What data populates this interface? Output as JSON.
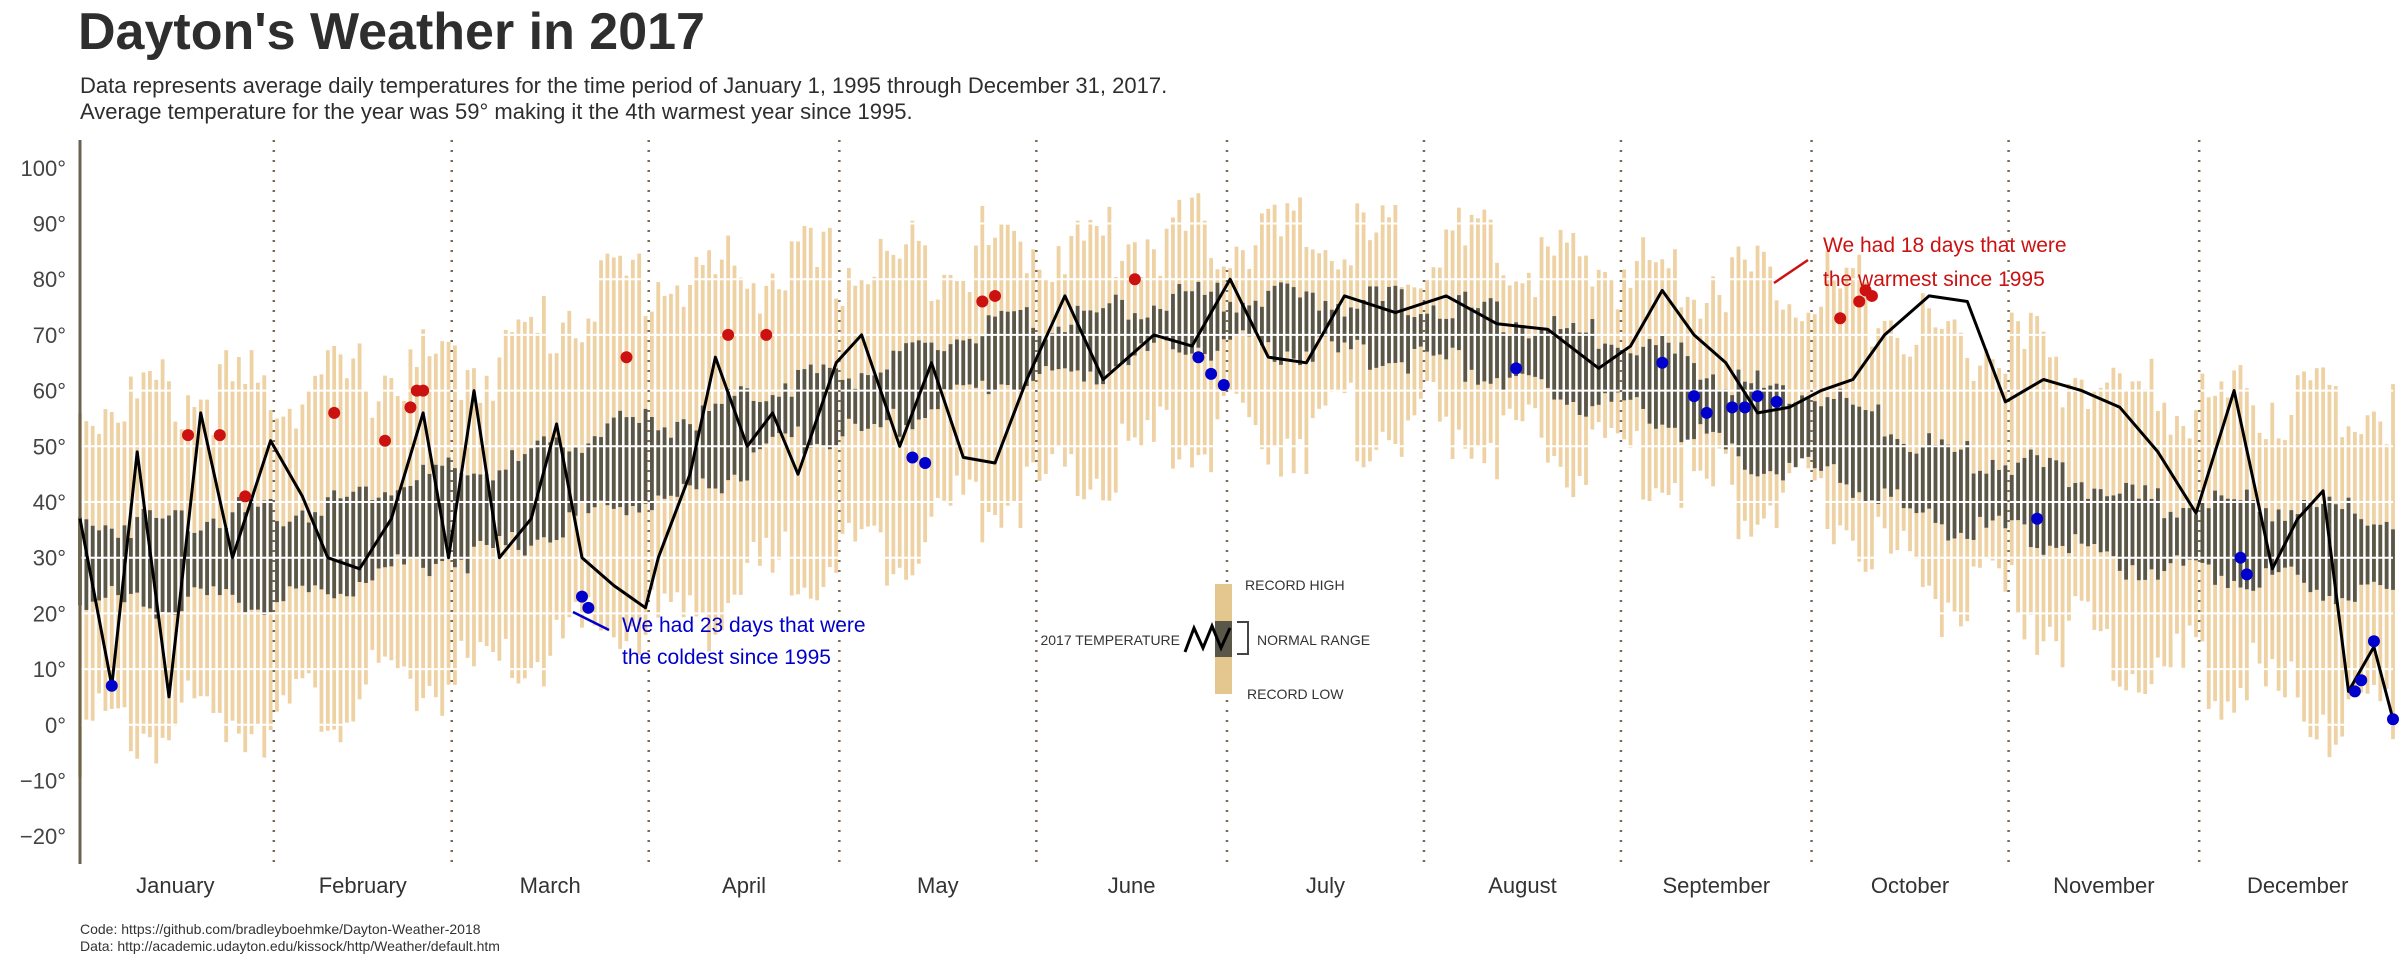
{
  "header": {
    "title": "Dayton's Weather in 2017",
    "subtitle_line1": "Data represents average daily temperatures for the time period of January 1, 1995 through December 31, 2017.",
    "subtitle_line2": "Average temperature for the year was 59° making it the 4th warmest year since 1995."
  },
  "footer": {
    "code": "Code: https://github.com/bradleyboehmke/Dayton-Weather-2018",
    "data": "Data: http://academic.udayton.edu/kissock/http/Weather/default.htm"
  },
  "colors": {
    "record_band": "#eed2a4",
    "normal_band": "#5a5648",
    "temp_line": "#000000",
    "cold_point": "#0000cc",
    "warm_point": "#cc1111",
    "month_divider": "#7a6a50",
    "grid": "#ffffff"
  },
  "chart_data": {
    "type": "line",
    "ylim": [
      -25,
      105
    ],
    "y_ticks": [
      -20,
      -10,
      0,
      10,
      20,
      30,
      40,
      50,
      60,
      70,
      80,
      90,
      100
    ],
    "y_tick_labels": [
      "−20°",
      "−10°",
      "0°",
      "10°",
      "20°",
      "30°",
      "40°",
      "50°",
      "60°",
      "70°",
      "80°",
      "90°",
      "100°"
    ],
    "months": [
      "January",
      "February",
      "March",
      "April",
      "May",
      "June",
      "July",
      "August",
      "September",
      "October",
      "November",
      "December"
    ],
    "month_lengths": [
      31,
      28,
      31,
      30,
      31,
      30,
      31,
      31,
      30,
      31,
      30,
      31
    ],
    "series_2017_days": [
      1,
      6,
      10,
      15,
      20,
      25,
      31,
      36,
      40,
      45,
      50,
      55,
      59,
      63,
      67,
      72,
      76,
      80,
      85,
      90,
      92,
      97,
      101,
      106,
      110,
      114,
      120,
      124,
      130,
      135,
      140,
      145,
      150,
      156,
      162,
      170,
      176,
      182,
      188,
      194,
      200,
      208,
      216,
      224,
      232,
      240,
      245,
      250,
      255,
      260,
      265,
      270,
      275,
      280,
      285,
      292,
      298,
      304,
      310,
      316,
      322,
      328,
      334,
      340,
      346,
      350,
      354,
      358,
      362,
      365
    ],
    "series_2017_temp": [
      37,
      7,
      49,
      5,
      56,
      30,
      51,
      41,
      30,
      28,
      37,
      56,
      30,
      60,
      30,
      37,
      54,
      30,
      25,
      21,
      30,
      45,
      66,
      50,
      56,
      45,
      65,
      70,
      50,
      65,
      48,
      47,
      62,
      77,
      62,
      70,
      68,
      80,
      66,
      65,
      77,
      74,
      77,
      72,
      71,
      64,
      68,
      78,
      70,
      65,
      56,
      57,
      60,
      62,
      70,
      77,
      76,
      58,
      62,
      60,
      57,
      49,
      38,
      60,
      28,
      37,
      42,
      6,
      14,
      1
    ],
    "record_high_ctrl_days": [
      1,
      30,
      60,
      90,
      120,
      150,
      180,
      210,
      240,
      270,
      300,
      330,
      365
    ],
    "record_high_ctrl": [
      58,
      60,
      64,
      80,
      82,
      86,
      88,
      86,
      82,
      80,
      68,
      58,
      58
    ],
    "record_low_ctrl_days": [
      1,
      30,
      60,
      90,
      120,
      150,
      180,
      210,
      240,
      270,
      300,
      330,
      365
    ],
    "record_low_ctrl": [
      -2,
      2,
      8,
      18,
      30,
      42,
      52,
      54,
      48,
      40,
      22,
      10,
      0
    ],
    "normal_high_ctrl_days": [
      1,
      30,
      60,
      90,
      120,
      150,
      180,
      210,
      240,
      270,
      300,
      330,
      365
    ],
    "normal_high_ctrl": [
      36,
      38,
      45,
      54,
      63,
      72,
      77,
      76,
      70,
      60,
      48,
      40,
      38
    ],
    "normal_low_ctrl_days": [
      1,
      30,
      60,
      90,
      120,
      150,
      180,
      210,
      240,
      270,
      300,
      330,
      365
    ],
    "normal_low_ctrl": [
      22,
      22,
      30,
      40,
      52,
      62,
      68,
      66,
      58,
      46,
      35,
      28,
      24
    ],
    "cold_records": [
      {
        "day": 6,
        "temp": 7
      },
      {
        "day": 80,
        "temp": 23
      },
      {
        "day": 81,
        "temp": 21
      },
      {
        "day": 132,
        "temp": 48
      },
      {
        "day": 134,
        "temp": 47
      },
      {
        "day": 177,
        "temp": 66
      },
      {
        "day": 179,
        "temp": 63
      },
      {
        "day": 181,
        "temp": 61
      },
      {
        "day": 227,
        "temp": 64
      },
      {
        "day": 250,
        "temp": 65
      },
      {
        "day": 255,
        "temp": 59
      },
      {
        "day": 257,
        "temp": 56
      },
      {
        "day": 261,
        "temp": 57
      },
      {
        "day": 263,
        "temp": 57
      },
      {
        "day": 265,
        "temp": 59
      },
      {
        "day": 268,
        "temp": 58
      },
      {
        "day": 309,
        "temp": 37
      },
      {
        "day": 341,
        "temp": 30
      },
      {
        "day": 342,
        "temp": 27
      },
      {
        "day": 359,
        "temp": 6
      },
      {
        "day": 360,
        "temp": 8
      },
      {
        "day": 362,
        "temp": 15
      },
      {
        "day": 365,
        "temp": 1
      }
    ],
    "warm_records": [
      {
        "day": 18,
        "temp": 52
      },
      {
        "day": 23,
        "temp": 52
      },
      {
        "day": 27,
        "temp": 41
      },
      {
        "day": 41,
        "temp": 56
      },
      {
        "day": 49,
        "temp": 51
      },
      {
        "day": 53,
        "temp": 57
      },
      {
        "day": 54,
        "temp": 60
      },
      {
        "day": 55,
        "temp": 60
      },
      {
        "day": 87,
        "temp": 66
      },
      {
        "day": 103,
        "temp": 70
      },
      {
        "day": 109,
        "temp": 70
      },
      {
        "day": 143,
        "temp": 76
      },
      {
        "day": 145,
        "temp": 77
      },
      {
        "day": 167,
        "temp": 80
      },
      {
        "day": 278,
        "temp": 73
      },
      {
        "day": 281,
        "temp": 76
      },
      {
        "day": 282,
        "temp": 78
      },
      {
        "day": 283,
        "temp": 77
      }
    ],
    "annotations": {
      "cold_line1": "We had 23 days that were",
      "cold_line2": "the coldest since 1995",
      "warm_line1": "We had 18 days that were",
      "warm_line2": "the warmest since 1995"
    },
    "legend": {
      "record_high": "RECORD HIGH",
      "normal_range": "NORMAL RANGE",
      "record_low": "RECORD LOW",
      "temperature": "2017 TEMPERATURE"
    },
    "grid": true
  }
}
